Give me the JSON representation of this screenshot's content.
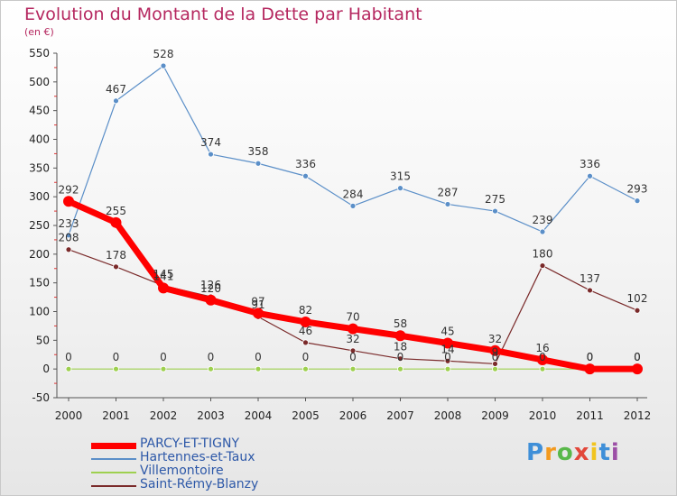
{
  "chart_data": {
    "type": "line",
    "title": "Evolution du Montant de la Dette par Habitant",
    "subtitle": "(en €)",
    "xlabel": "",
    "ylabel": "",
    "x": [
      "2000",
      "2001",
      "2002",
      "2003",
      "2004",
      "2005",
      "2006",
      "2007",
      "2008",
      "2009",
      "2010",
      "2011",
      "2012"
    ],
    "ylim": [
      -50,
      550
    ],
    "yticks": [
      -50,
      0,
      50,
      100,
      150,
      200,
      250,
      300,
      350,
      400,
      450,
      500,
      550
    ],
    "grid": false,
    "legend_position": "bottom-left",
    "series": [
      {
        "name": "PARCY-ET-TIGNY",
        "color": "#ff0000",
        "values": [
          292,
          255,
          141,
          120,
          97,
          82,
          70,
          58,
          45,
          32,
          16,
          0,
          0
        ]
      },
      {
        "name": "Hartennes-et-Taux",
        "color": "#5b8fc8",
        "values": [
          233,
          467,
          528,
          374,
          358,
          336,
          284,
          315,
          287,
          275,
          239,
          336,
          293
        ]
      },
      {
        "name": "Villemontoire",
        "color": "#9ed04f",
        "values": [
          0,
          0,
          0,
          0,
          0,
          0,
          0,
          0,
          0,
          0,
          0,
          0,
          0
        ]
      },
      {
        "name": "Saint-Rémy-Blanzy",
        "color": "#7a2a2a",
        "values": [
          208,
          178,
          145,
          126,
          91,
          46,
          32,
          18,
          14,
          9,
          180,
          137,
          102
        ]
      }
    ]
  },
  "brand": [
    "P",
    "r",
    "o",
    "x",
    "i",
    "t",
    "i"
  ]
}
